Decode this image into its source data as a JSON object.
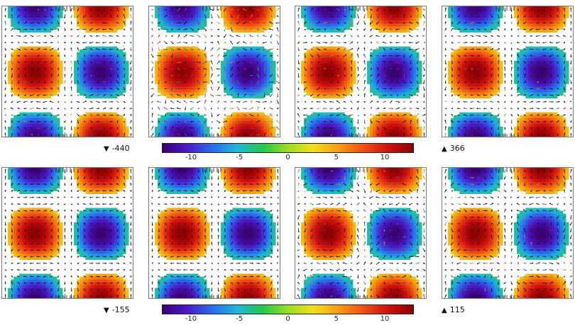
{
  "chart_data": {
    "type": "heatmap",
    "description_free": true,
    "field": "vorticity",
    "colorscale": [
      "#3a0070",
      "#4b1ac8",
      "#2a6cf0",
      "#1fb8d8",
      "#22c84a",
      "#9ade22",
      "#f2e01a",
      "#f5a010",
      "#f25010",
      "#d01010",
      "#8a0000"
    ],
    "clim": [
      -13,
      13
    ],
    "colorbar_ticks": [
      {
        "value": -10,
        "label": "-10"
      },
      {
        "value": -5,
        "label": "-5"
      },
      {
        "value": 0,
        "label": "0"
      },
      {
        "value": 5,
        "label": "5"
      },
      {
        "value": 10,
        "label": "10"
      }
    ],
    "panels": [
      {
        "row": 0,
        "col": 0,
        "noise": 0.35
      },
      {
        "row": 0,
        "col": 1,
        "noise": 1.0
      },
      {
        "row": 0,
        "col": 2,
        "noise": 0.55
      },
      {
        "row": 0,
        "col": 3,
        "noise": 0.25
      },
      {
        "row": 1,
        "col": 0,
        "noise": 0.0
      },
      {
        "row": 1,
        "col": 1,
        "noise": 0.05
      },
      {
        "row": 1,
        "col": 2,
        "noise": 0.6
      },
      {
        "row": 1,
        "col": 3,
        "noise": 0.45
      }
    ],
    "annotations": [
      {
        "id": "a1",
        "marker": "▼",
        "text": "-440"
      },
      {
        "id": "a2",
        "marker": "▲",
        "text": "366"
      },
      {
        "id": "a3",
        "marker": "▼",
        "text": "-155"
      },
      {
        "id": "a4",
        "marker": "▲",
        "text": "115"
      }
    ]
  }
}
